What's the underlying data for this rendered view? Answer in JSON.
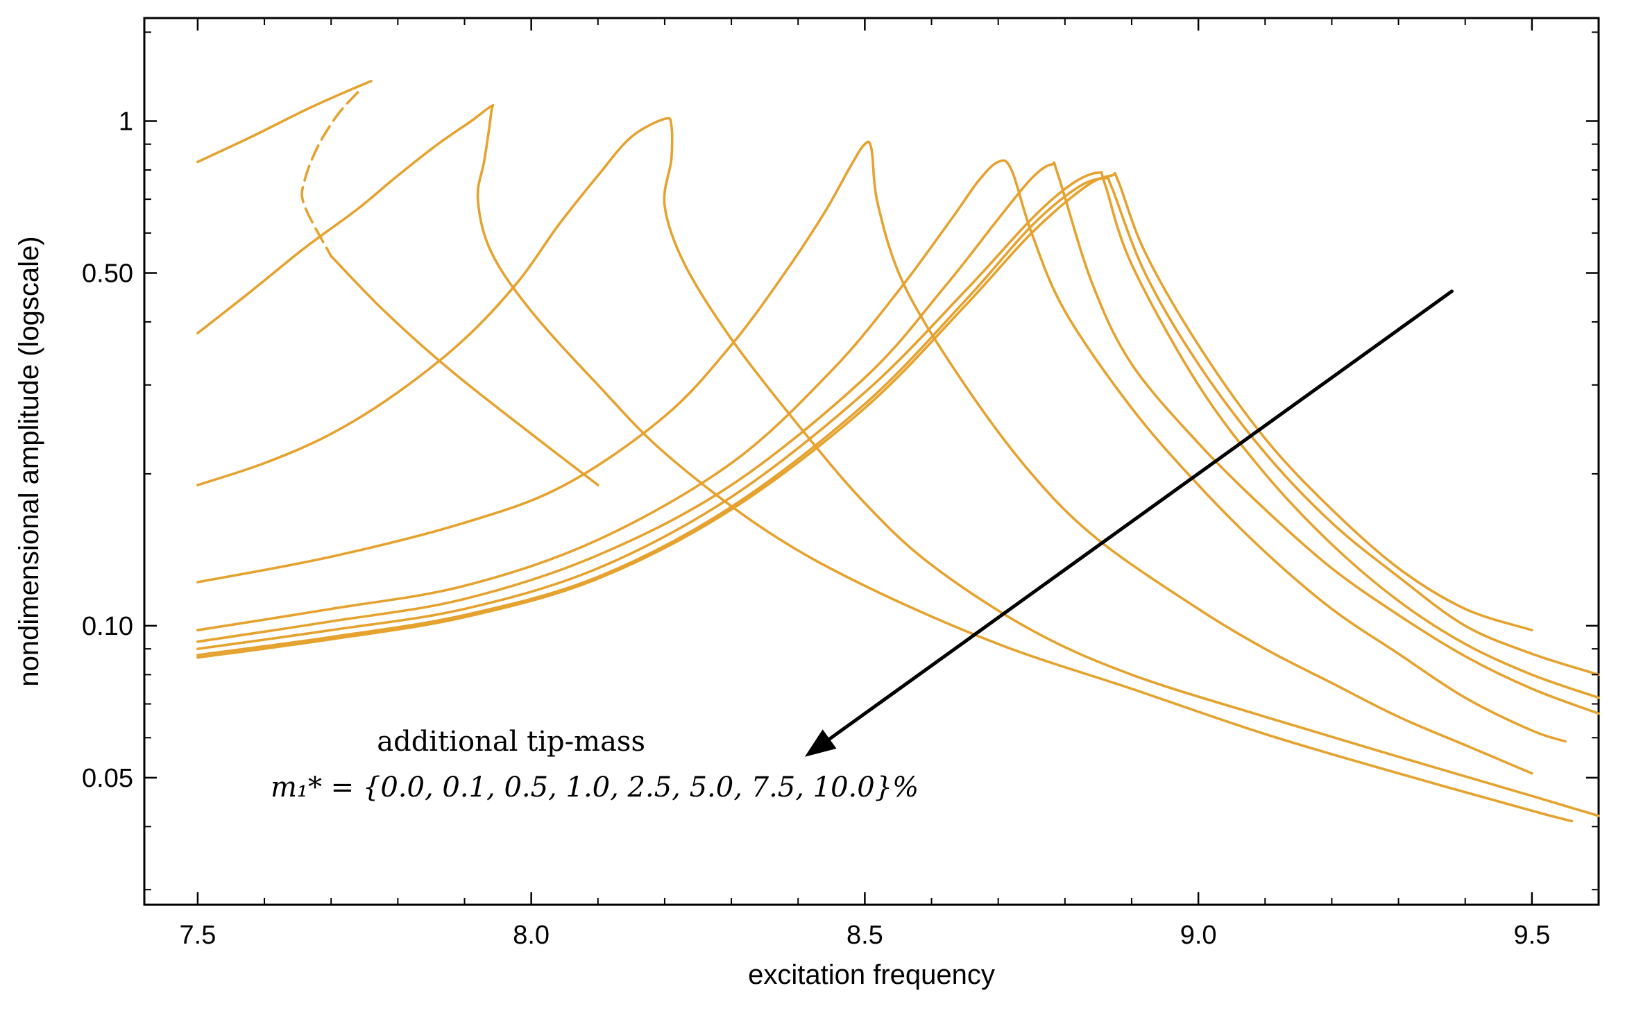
{
  "chart_data": {
    "type": "line",
    "title": "",
    "xlabel": "excitation frequency",
    "ylabel": "nondimensional amplitude (logscale)",
    "xlim": [
      7.42,
      9.6
    ],
    "ylim": [
      0.028,
      1.6
    ],
    "yscale": "log",
    "x_ticks": [
      7.5,
      8.0,
      8.5,
      9.0,
      9.5
    ],
    "x_tick_labels": [
      "7.5",
      "8.0",
      "8.5",
      "9.0",
      "9.5"
    ],
    "y_ticks": [
      0.05,
      0.1,
      0.5,
      1.0
    ],
    "y_tick_labels": [
      "0.05",
      "0.10",
      "0.50",
      "1"
    ],
    "grid": false,
    "line_color": "#E5A22E",
    "arrow_color": "#000000",
    "annotation": {
      "line1": "additional tip-mass",
      "line2": "m₁* = {0.0, 0.1, 0.5, 1.0, 2.5, 5.0, 7.5, 10.0}%"
    },
    "series": [
      {
        "name": "0.0%",
        "peak_x": 8.87,
        "peak_y": 0.78,
        "upper": [
          [
            7.5,
            0.0865
          ],
          [
            7.7,
            0.094
          ],
          [
            7.9,
            0.104
          ],
          [
            8.1,
            0.124
          ],
          [
            8.3,
            0.17
          ],
          [
            8.5,
            0.27
          ],
          [
            8.65,
            0.43
          ],
          [
            8.75,
            0.6
          ],
          [
            8.83,
            0.74
          ],
          [
            8.87,
            0.78
          ]
        ],
        "lower": [
          [
            8.88,
            0.76
          ],
          [
            8.92,
            0.55
          ],
          [
            9.0,
            0.36
          ],
          [
            9.1,
            0.235
          ],
          [
            9.2,
            0.17
          ],
          [
            9.3,
            0.13
          ],
          [
            9.4,
            0.108
          ],
          [
            9.5,
            0.098
          ]
        ]
      },
      {
        "name": "0.1%",
        "peak_x": 8.86,
        "peak_y": 0.77,
        "upper": [
          [
            7.5,
            0.0875
          ],
          [
            7.7,
            0.095
          ],
          [
            7.9,
            0.105
          ],
          [
            8.1,
            0.125
          ],
          [
            8.3,
            0.172
          ],
          [
            8.5,
            0.275
          ],
          [
            8.65,
            0.44
          ],
          [
            8.75,
            0.62
          ],
          [
            8.82,
            0.74
          ],
          [
            8.86,
            0.77
          ]
        ],
        "lower": [
          [
            8.87,
            0.74
          ],
          [
            8.92,
            0.5
          ],
          [
            9.0,
            0.33
          ],
          [
            9.1,
            0.22
          ],
          [
            9.2,
            0.16
          ],
          [
            9.3,
            0.125
          ],
          [
            9.4,
            0.1
          ],
          [
            9.5,
            0.088
          ],
          [
            9.6,
            0.08
          ]
        ]
      },
      {
        "name": "0.5%",
        "peak_x": 8.85,
        "peak_y": 0.79,
        "upper": [
          [
            7.5,
            0.09
          ],
          [
            7.7,
            0.098
          ],
          [
            7.9,
            0.108
          ],
          [
            8.1,
            0.13
          ],
          [
            8.3,
            0.18
          ],
          [
            8.5,
            0.29
          ],
          [
            8.65,
            0.46
          ],
          [
            8.75,
            0.64
          ],
          [
            8.81,
            0.75
          ],
          [
            8.85,
            0.79
          ]
        ],
        "lower": [
          [
            8.86,
            0.75
          ],
          [
            8.9,
            0.52
          ],
          [
            9.0,
            0.3
          ],
          [
            9.1,
            0.2
          ],
          [
            9.2,
            0.145
          ],
          [
            9.3,
            0.112
          ],
          [
            9.4,
            0.092
          ],
          [
            9.5,
            0.08
          ],
          [
            9.6,
            0.072
          ]
        ]
      },
      {
        "name": "1.0%",
        "peak_x": 8.78,
        "peak_y": 0.82,
        "upper": [
          [
            7.5,
            0.093
          ],
          [
            7.7,
            0.102
          ],
          [
            7.9,
            0.113
          ],
          [
            8.1,
            0.138
          ],
          [
            8.3,
            0.19
          ],
          [
            8.5,
            0.31
          ],
          [
            8.62,
            0.47
          ],
          [
            8.7,
            0.64
          ],
          [
            8.75,
            0.77
          ],
          [
            8.78,
            0.82
          ]
        ],
        "lower": [
          [
            8.79,
            0.78
          ],
          [
            8.84,
            0.48
          ],
          [
            8.9,
            0.33
          ],
          [
            9.0,
            0.23
          ],
          [
            9.1,
            0.17
          ],
          [
            9.2,
            0.13
          ],
          [
            9.3,
            0.105
          ],
          [
            9.4,
            0.087
          ],
          [
            9.5,
            0.075
          ],
          [
            9.6,
            0.067
          ]
        ]
      },
      {
        "name": "2.5%",
        "peak_x": 8.7,
        "peak_y": 0.83,
        "upper": [
          [
            7.5,
            0.098
          ],
          [
            7.7,
            0.108
          ],
          [
            7.9,
            0.12
          ],
          [
            8.1,
            0.148
          ],
          [
            8.3,
            0.21
          ],
          [
            8.45,
            0.32
          ],
          [
            8.55,
            0.46
          ],
          [
            8.63,
            0.64
          ],
          [
            8.67,
            0.76
          ],
          [
            8.7,
            0.83
          ]
        ],
        "lower": [
          [
            8.72,
            0.8
          ],
          [
            8.75,
            0.6
          ],
          [
            8.8,
            0.42
          ],
          [
            8.9,
            0.27
          ],
          [
            9.0,
            0.19
          ],
          [
            9.1,
            0.14
          ],
          [
            9.2,
            0.108
          ],
          [
            9.3,
            0.088
          ],
          [
            9.4,
            0.072
          ],
          [
            9.5,
            0.062
          ],
          [
            9.55,
            0.059
          ]
        ]
      },
      {
        "name": "5.0%",
        "peak_x": 8.5,
        "peak_y": 0.9,
        "upper": [
          [
            7.5,
            0.122
          ],
          [
            7.7,
            0.137
          ],
          [
            7.9,
            0.16
          ],
          [
            8.05,
            0.19
          ],
          [
            8.2,
            0.26
          ],
          [
            8.3,
            0.36
          ],
          [
            8.38,
            0.5
          ],
          [
            8.44,
            0.66
          ],
          [
            8.48,
            0.82
          ],
          [
            8.5,
            0.9
          ]
        ],
        "lower": [
          [
            8.51,
            0.88
          ],
          [
            8.52,
            0.68
          ],
          [
            8.56,
            0.47
          ],
          [
            8.65,
            0.3
          ],
          [
            8.75,
            0.2
          ],
          [
            8.85,
            0.148
          ],
          [
            9.0,
            0.108
          ],
          [
            9.1,
            0.09
          ],
          [
            9.2,
            0.077
          ],
          [
            9.3,
            0.066
          ],
          [
            9.4,
            0.058
          ],
          [
            9.5,
            0.051
          ]
        ]
      },
      {
        "name": "7.5%",
        "peak_x": 8.2,
        "peak_y": 1.01,
        "upper": [
          [
            7.5,
            0.19
          ],
          [
            7.6,
            0.21
          ],
          [
            7.7,
            0.24
          ],
          [
            7.8,
            0.29
          ],
          [
            7.9,
            0.37
          ],
          [
            7.98,
            0.48
          ],
          [
            8.04,
            0.62
          ],
          [
            8.1,
            0.78
          ],
          [
            8.15,
            0.93
          ],
          [
            8.2,
            1.01
          ]
        ],
        "lower": [
          [
            8.21,
            0.98
          ],
          [
            8.21,
            0.84
          ],
          [
            8.2,
            0.68
          ],
          [
            8.23,
            0.52
          ],
          [
            8.3,
            0.37
          ],
          [
            8.4,
            0.25
          ],
          [
            8.5,
            0.175
          ],
          [
            8.6,
            0.132
          ],
          [
            8.75,
            0.098
          ],
          [
            8.9,
            0.08
          ],
          [
            9.1,
            0.066
          ],
          [
            9.3,
            0.055
          ],
          [
            9.5,
            0.046
          ],
          [
            9.6,
            0.042
          ]
        ]
      },
      {
        "name": "10.0%",
        "peak_x": 7.94,
        "peak_y": 1.07,
        "upper": [
          [
            7.5,
            0.38
          ],
          [
            7.58,
            0.46
          ],
          [
            7.66,
            0.56
          ],
          [
            7.74,
            0.67
          ],
          [
            7.8,
            0.78
          ],
          [
            7.86,
            0.9
          ],
          [
            7.91,
            1.0
          ],
          [
            7.94,
            1.07
          ]
        ],
        "lower": [
          [
            7.94,
            1.04
          ],
          [
            7.93,
            0.84
          ],
          [
            7.92,
            0.7
          ],
          [
            7.94,
            0.55
          ],
          [
            8.0,
            0.42
          ],
          [
            8.1,
            0.3
          ],
          [
            8.2,
            0.22
          ],
          [
            8.35,
            0.155
          ],
          [
            8.5,
            0.12
          ],
          [
            8.7,
            0.092
          ],
          [
            8.9,
            0.075
          ],
          [
            9.1,
            0.061
          ],
          [
            9.3,
            0.051
          ],
          [
            9.5,
            0.043
          ],
          [
            9.56,
            0.041
          ]
        ]
      }
    ],
    "extra_branch": {
      "upper": [
        [
          7.5,
          0.83
        ],
        [
          7.58,
          0.93
        ],
        [
          7.66,
          1.05
        ],
        [
          7.72,
          1.14
        ],
        [
          7.76,
          1.2
        ]
      ],
      "lower": [
        [
          7.74,
          1.14
        ],
        [
          7.71,
          1.03
        ],
        [
          7.68,
          0.89
        ],
        [
          7.66,
          0.76
        ],
        [
          7.66,
          0.68
        ],
        [
          7.7,
          0.54
        ],
        [
          7.78,
          0.42
        ],
        [
          7.88,
          0.32
        ],
        [
          8.0,
          0.24
        ],
        [
          8.1,
          0.19
        ]
      ]
    },
    "arrow": {
      "from": [
        9.38,
        0.46
      ],
      "to": [
        8.41,
        0.055
      ]
    }
  }
}
